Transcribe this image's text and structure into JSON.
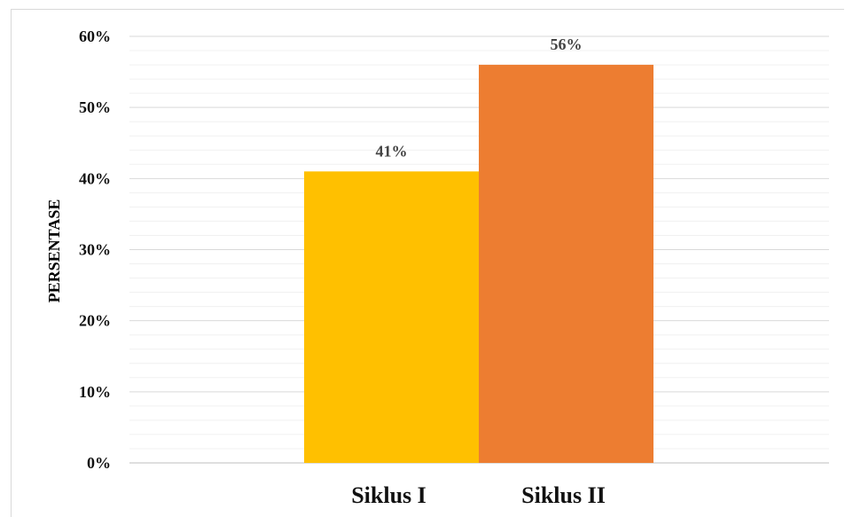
{
  "chart_data": {
    "type": "bar",
    "categories": [
      "Siklus I",
      "Siklus II"
    ],
    "values": [
      41,
      56
    ],
    "data_labels": [
      "41%",
      "56%"
    ],
    "bar_colors": [
      "#FFC000",
      "#ED7D31"
    ],
    "ylabel": "PERSENTASE",
    "xlabel": "",
    "ylim": [
      0,
      60
    ],
    "y_ticks": [
      0,
      10,
      20,
      30,
      40,
      50,
      60
    ],
    "y_tick_labels": [
      "0%",
      "10%",
      "20%",
      "30%",
      "40%",
      "50%",
      "60%"
    ],
    "minor_grid_step": 2,
    "grid": true,
    "legend": false
  }
}
